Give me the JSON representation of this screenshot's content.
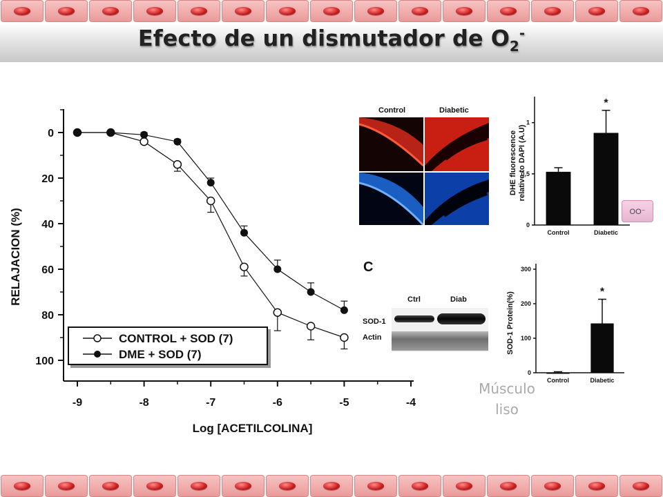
{
  "title": {
    "main": "Efecto de un dismutador de O",
    "subscript": "2",
    "superscript": "-"
  },
  "decor_cells": 15,
  "side_text": "Músculo liso",
  "pink_button_label": "OO⁻",
  "colors": {
    "cell": "#e99a9a",
    "cell_dot": "#c91c1c",
    "title_band": "#dcdcdc",
    "dhe_red": "#d42a1b",
    "dapi_blue": "#1f6fe0"
  },
  "chart_data": [
    {
      "type": "line",
      "title": "",
      "xlabel": "Log [ACETILCOLINA]",
      "ylabel": "RELAJACION (%)",
      "xlim": [
        -9,
        -4
      ],
      "ylim": [
        0,
        100
      ],
      "y_inverted": true,
      "xticks": [
        "-9",
        "-8",
        "-7",
        "-6",
        "-5",
        "-4"
      ],
      "yticks": [
        "0",
        "20",
        "40",
        "60",
        "80",
        "100"
      ],
      "grid": false,
      "legend_position": "bottom-left",
      "series": [
        {
          "name": "CONTROL + SOD (7)",
          "marker": "open-circle",
          "x": [
            -9,
            -8.5,
            -8,
            -7.5,
            -7,
            -6.5,
            -6,
            -5.5,
            -5
          ],
          "y": [
            0,
            0,
            4,
            14,
            30,
            59,
            79,
            85,
            90
          ],
          "err": [
            0,
            0,
            1,
            3,
            5,
            4,
            8,
            6,
            5
          ]
        },
        {
          "name": "DME + SOD (7)",
          "marker": "filled-circle",
          "x": [
            -9,
            -8.5,
            -8,
            -7.5,
            -7,
            -6.5,
            -6,
            -5.5,
            -5
          ],
          "y": [
            0,
            0,
            1,
            4,
            22,
            44,
            60,
            70,
            78
          ],
          "err": [
            0,
            0,
            1,
            1,
            2,
            3,
            4,
            4,
            4
          ]
        }
      ]
    },
    {
      "type": "bar",
      "title": "",
      "xlabel": "",
      "ylabel": "DHE fluorescence relative to DAPI (A.U)",
      "categories": [
        "Control",
        "Diabetic"
      ],
      "values": [
        0.52,
        0.9
      ],
      "err": [
        0.04,
        0.22
      ],
      "ylim": [
        0,
        1.2
      ],
      "yticks": [
        "0",
        "0,5",
        "1"
      ],
      "annotations": [
        "*"
      ]
    },
    {
      "type": "bar",
      "title": "",
      "xlabel": "",
      "ylabel": "SOD-1 Protein(%)",
      "categories": [
        "Control",
        "Diabetic"
      ],
      "values": [
        0,
        143
      ],
      "err": [
        3,
        70
      ],
      "ylim": [
        0,
        300
      ],
      "yticks": [
        "0",
        "100",
        "200",
        "300"
      ],
      "annotations": [
        "*"
      ]
    }
  ],
  "micrograph": {
    "col_labels": [
      "Control",
      "Diabetic"
    ]
  },
  "western_blot": {
    "panel_letter": "C",
    "col_labels": [
      "Ctrl",
      "Diab"
    ],
    "row_labels": [
      "SOD-1",
      "Actin"
    ]
  }
}
